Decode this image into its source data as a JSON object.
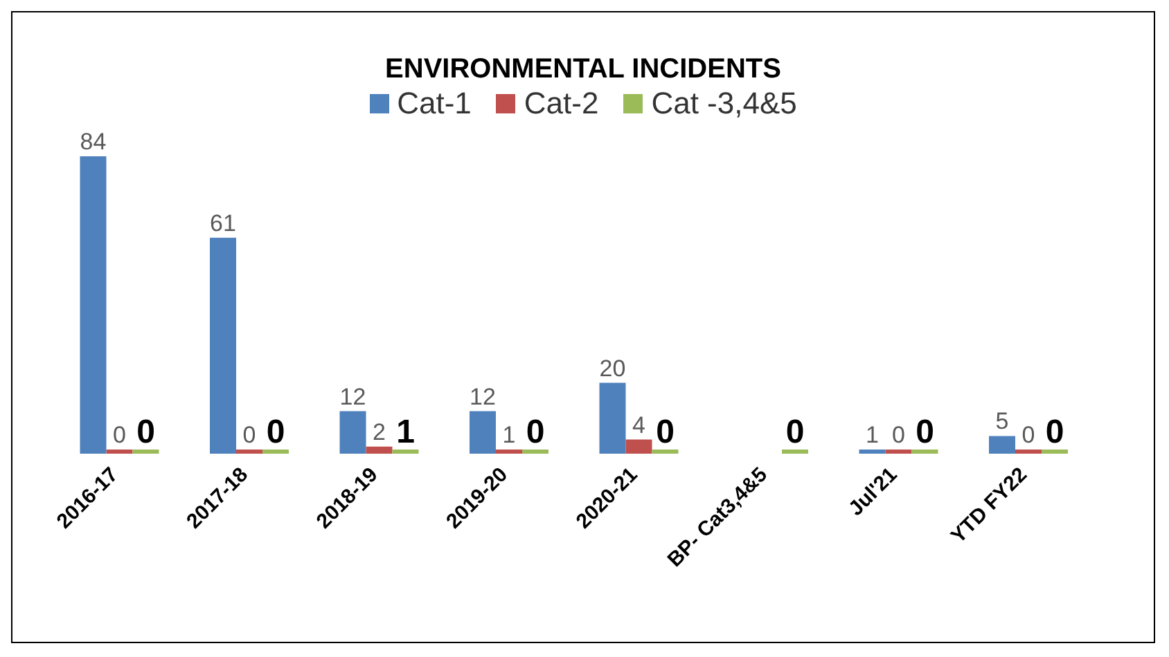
{
  "chart_data": {
    "type": "bar",
    "title": "ENVIRONMENTAL INCIDENTS",
    "categories": [
      "2016-17",
      "2017-18",
      "2018-19",
      "2019-20",
      "2020-21",
      "BP- Cat3,4&5",
      "Jul'21",
      "YTD FY22"
    ],
    "series": [
      {
        "name": "Cat-1",
        "color": "#4f81bd",
        "values": [
          84,
          61,
          12,
          12,
          20,
          null,
          1,
          5
        ]
      },
      {
        "name": "Cat-2",
        "color": "#c0504d",
        "values": [
          0,
          0,
          2,
          1,
          4,
          null,
          0,
          0
        ]
      },
      {
        "name": "Cat -3,4&5",
        "color": "#9bbb59",
        "values": [
          0,
          0,
          1,
          0,
          0,
          0,
          0,
          0
        ]
      }
    ],
    "data_labels": true,
    "legend": "top",
    "grid": false
  }
}
